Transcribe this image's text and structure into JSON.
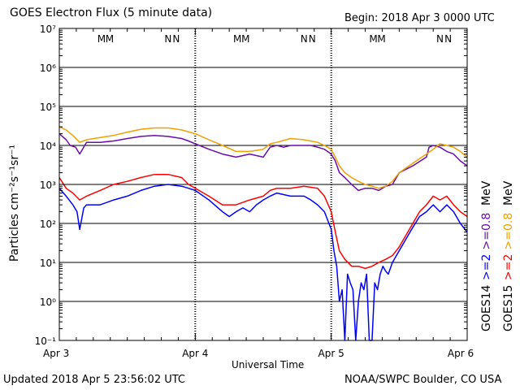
{
  "header": {
    "title": "GOES Electron Flux (5 minute data)",
    "begin": "Begin: 2018 Apr 3 0000 UTC"
  },
  "footer": {
    "updated": "Updated 2018 Apr  5 23:56:02 UTC",
    "credit": "NOAA/SWPC Boulder, CO USA"
  },
  "colors": {
    "goes14_high": "#0000ff",
    "goes14_low": "#6a0dad",
    "goes15_high": "#ff0000",
    "goes15_low": "#f0a000",
    "marker_m": "#0000ff",
    "marker_n": "#ff0000"
  },
  "chart_data": {
    "type": "line",
    "title": "GOES Electron Flux (5 minute data)",
    "xlabel": "Universal Time",
    "ylabel": "Particles cm⁻²s⁻¹sr⁻¹",
    "y_scale": "log",
    "ylim": [
      0.1,
      10000000
    ],
    "xlim_days": [
      0,
      3
    ],
    "x_ticks": [
      "Apr 3",
      "Apr 4",
      "Apr 5",
      "Apr 6"
    ],
    "y_ticks": [
      "10⁻¹",
      "10⁰",
      "10¹",
      "10²",
      "10³",
      "10⁴",
      "10⁵",
      "10⁶",
      "10⁷"
    ],
    "threshold": 1000,
    "grid": true,
    "markers": [
      {
        "day": 0.31,
        "label": "M",
        "color": "marker_m"
      },
      {
        "day": 0.37,
        "label": "M",
        "color": "marker_n"
      },
      {
        "day": 0.8,
        "label": "N",
        "color": "marker_m"
      },
      {
        "day": 0.86,
        "label": "N",
        "color": "marker_n"
      },
      {
        "day": 1.31,
        "label": "M",
        "color": "marker_m"
      },
      {
        "day": 1.37,
        "label": "M",
        "color": "marker_n"
      },
      {
        "day": 1.8,
        "label": "N",
        "color": "marker_m"
      },
      {
        "day": 1.86,
        "label": "N",
        "color": "marker_n"
      },
      {
        "day": 2.31,
        "label": "M",
        "color": "marker_m"
      },
      {
        "day": 2.37,
        "label": "M",
        "color": "marker_n"
      },
      {
        "day": 2.8,
        "label": "N",
        "color": "marker_m"
      },
      {
        "day": 2.86,
        "label": "N",
        "color": "marker_n"
      }
    ],
    "legend": {
      "left_column": [
        {
          "text": "GOES14",
          "color": "#000000"
        },
        {
          "text": ">=2",
          "color": "#0000ff"
        },
        {
          "text": ">=0.8",
          "color": "#6a0dad"
        },
        {
          "text": "MeV",
          "color": "#000000"
        }
      ],
      "right_column": [
        {
          "text": "GOES15",
          "color": "#000000"
        },
        {
          "text": ">=2",
          "color": "#ff0000"
        },
        {
          "text": ">=0.8",
          "color": "#f0a000"
        },
        {
          "text": "MeV",
          "color": "#000000"
        }
      ]
    },
    "series": [
      {
        "name": "GOES14 >=0.8 MeV",
        "color": "#6a0dad",
        "x": [
          0.0,
          0.05,
          0.08,
          0.12,
          0.15,
          0.2,
          0.3,
          0.4,
          0.5,
          0.6,
          0.7,
          0.8,
          0.9,
          0.95,
          1.0,
          1.1,
          1.2,
          1.3,
          1.4,
          1.5,
          1.55,
          1.6,
          1.65,
          1.7,
          1.8,
          1.85,
          1.9,
          1.95,
          2.0,
          2.03,
          2.06,
          2.1,
          2.15,
          2.2,
          2.25,
          2.3,
          2.35,
          2.4,
          2.45,
          2.5,
          2.6,
          2.7,
          2.72,
          2.75,
          2.8,
          2.85,
          2.9,
          2.95,
          3.0
        ],
        "y": [
          20000,
          14000,
          10000,
          9000,
          6000,
          12000,
          12000,
          13000,
          15000,
          17000,
          18000,
          17000,
          15000,
          13000,
          11000,
          8000,
          6000,
          5000,
          6000,
          5000,
          9000,
          10000,
          9000,
          10000,
          10000,
          10000,
          9000,
          8000,
          6000,
          4000,
          2000,
          1500,
          1000,
          700,
          800,
          800,
          700,
          900,
          1000,
          2000,
          3000,
          5000,
          9000,
          10000,
          9000,
          7000,
          6000,
          4000,
          3000
        ]
      },
      {
        "name": "GOES15 >=0.8 MeV",
        "color": "#f0a000",
        "x": [
          0.0,
          0.05,
          0.1,
          0.15,
          0.2,
          0.3,
          0.4,
          0.5,
          0.6,
          0.7,
          0.8,
          0.9,
          1.0,
          1.1,
          1.2,
          1.3,
          1.4,
          1.5,
          1.55,
          1.6,
          1.7,
          1.8,
          1.9,
          1.95,
          2.0,
          2.03,
          2.06,
          2.1,
          2.15,
          2.2,
          2.25,
          2.3,
          2.35,
          2.4,
          2.45,
          2.5,
          2.6,
          2.7,
          2.75,
          2.8,
          2.85,
          2.9,
          2.95,
          3.0
        ],
        "y": [
          30000,
          25000,
          18000,
          12000,
          14000,
          16000,
          18000,
          22000,
          26000,
          28000,
          28000,
          25000,
          20000,
          14000,
          10000,
          7000,
          7000,
          8000,
          11000,
          12000,
          15000,
          14000,
          12000,
          10000,
          8000,
          5000,
          3000,
          2000,
          1500,
          1200,
          1000,
          900,
          800,
          900,
          1200,
          2000,
          3500,
          6000,
          8000,
          11000,
          10000,
          9000,
          7000,
          5000
        ]
      },
      {
        "name": "GOES14 >=2 MeV",
        "color": "#0000ff",
        "x": [
          0.0,
          0.05,
          0.1,
          0.13,
          0.15,
          0.18,
          0.2,
          0.3,
          0.4,
          0.5,
          0.6,
          0.7,
          0.8,
          0.9,
          0.95,
          1.0,
          1.1,
          1.2,
          1.25,
          1.3,
          1.35,
          1.4,
          1.45,
          1.5,
          1.55,
          1.6,
          1.7,
          1.8,
          1.85,
          1.9,
          1.95,
          2.0,
          2.02,
          2.04,
          2.06,
          2.08,
          2.1,
          2.12,
          2.14,
          2.16,
          2.18,
          2.2,
          2.22,
          2.24,
          2.26,
          2.28,
          2.3,
          2.32,
          2.34,
          2.36,
          2.38,
          2.4,
          2.42,
          2.45,
          2.5,
          2.55,
          2.6,
          2.65,
          2.7,
          2.75,
          2.8,
          2.85,
          2.9,
          2.95,
          3.0
        ],
        "y": [
          800,
          500,
          300,
          200,
          70,
          250,
          300,
          300,
          400,
          500,
          700,
          900,
          1000,
          900,
          800,
          700,
          400,
          200,
          150,
          200,
          250,
          200,
          300,
          400,
          500,
          600,
          500,
          500,
          400,
          300,
          200,
          70,
          20,
          8,
          1,
          2,
          0.1,
          5,
          3,
          2,
          0.1,
          1,
          3,
          2,
          5,
          0.1,
          0.1,
          3,
          2,
          5,
          8,
          6,
          5,
          10,
          20,
          40,
          80,
          150,
          200,
          300,
          200,
          300,
          200,
          100,
          60
        ]
      },
      {
        "name": "GOES15 >=2 MeV",
        "color": "#ff0000",
        "x": [
          0.0,
          0.05,
          0.1,
          0.15,
          0.2,
          0.3,
          0.4,
          0.5,
          0.6,
          0.7,
          0.8,
          0.9,
          0.95,
          1.0,
          1.1,
          1.2,
          1.3,
          1.4,
          1.5,
          1.55,
          1.6,
          1.7,
          1.8,
          1.9,
          1.95,
          2.0,
          2.03,
          2.06,
          2.1,
          2.15,
          2.2,
          2.25,
          2.3,
          2.35,
          2.4,
          2.45,
          2.5,
          2.55,
          2.6,
          2.65,
          2.7,
          2.75,
          2.8,
          2.85,
          2.9,
          2.95,
          3.0
        ],
        "y": [
          1500,
          800,
          600,
          400,
          500,
          700,
          1000,
          1200,
          1500,
          1800,
          1800,
          1500,
          1000,
          800,
          500,
          300,
          300,
          400,
          500,
          700,
          800,
          800,
          900,
          800,
          500,
          200,
          60,
          20,
          12,
          8,
          8,
          7,
          8,
          10,
          12,
          15,
          25,
          50,
          100,
          200,
          300,
          500,
          400,
          500,
          300,
          200,
          150
        ]
      }
    ]
  }
}
